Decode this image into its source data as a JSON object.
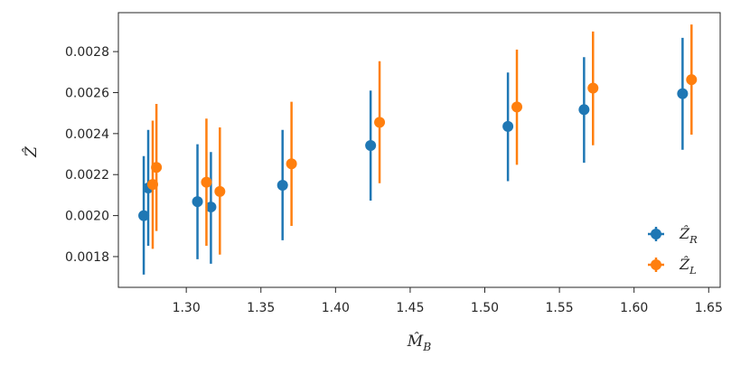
{
  "chart_data": {
    "type": "scatter",
    "title": "",
    "xlabel": "M̂_B",
    "ylabel": "Ẑ",
    "xlim": [
      1.2545,
      1.6577
    ],
    "ylim": [
      0.00165,
      0.00299
    ],
    "xticks": [
      1.3,
      1.35,
      1.4,
      1.45,
      1.5,
      1.55,
      1.6,
      1.65
    ],
    "xtick_labels": [
      "1.30",
      "1.35",
      "1.40",
      "1.45",
      "1.50",
      "1.55",
      "1.60",
      "1.65"
    ],
    "yticks": [
      0.0018,
      0.002,
      0.0022,
      0.0024,
      0.0026,
      0.0028
    ],
    "ytick_labels": [
      "0.0018",
      "0.0020",
      "0.0022",
      "0.0024",
      "0.0026",
      "0.0028"
    ],
    "grid": false,
    "legend_position": "lower-right",
    "series": [
      {
        "name": "Ẑ_R",
        "color": "#1f77b4",
        "points": [
          {
            "x": 1.2715,
            "y": 0.002,
            "ylow": 0.001712,
            "yhigh": 0.00229
          },
          {
            "x": 1.2745,
            "y": 0.002135,
            "ylow": 0.001853,
            "yhigh": 0.002418
          },
          {
            "x": 1.3075,
            "y": 0.002068,
            "ylow": 0.001787,
            "yhigh": 0.002348
          },
          {
            "x": 1.3165,
            "y": 0.002042,
            "ylow": 0.001765,
            "yhigh": 0.00231
          },
          {
            "x": 1.3645,
            "y": 0.002148,
            "ylow": 0.00188,
            "yhigh": 0.002418
          },
          {
            "x": 1.4235,
            "y": 0.002342,
            "ylow": 0.002073,
            "yhigh": 0.00261
          },
          {
            "x": 1.5155,
            "y": 0.002435,
            "ylow": 0.002168,
            "yhigh": 0.002698
          },
          {
            "x": 1.5665,
            "y": 0.002517,
            "ylow": 0.002258,
            "yhigh": 0.002773
          },
          {
            "x": 1.6325,
            "y": 0.002595,
            "ylow": 0.002321,
            "yhigh": 0.002867
          }
        ]
      },
      {
        "name": "Ẑ_L",
        "color": "#ff7f0e",
        "points": [
          {
            "x": 1.2775,
            "y": 0.002152,
            "ylow": 0.001838,
            "yhigh": 0.002463
          },
          {
            "x": 1.28,
            "y": 0.002235,
            "ylow": 0.001925,
            "yhigh": 0.002545
          },
          {
            "x": 1.3135,
            "y": 0.002163,
            "ylow": 0.001853,
            "yhigh": 0.002473
          },
          {
            "x": 1.3225,
            "y": 0.002118,
            "ylow": 0.00181,
            "yhigh": 0.00243
          },
          {
            "x": 1.3705,
            "y": 0.002253,
            "ylow": 0.00195,
            "yhigh": 0.002555
          },
          {
            "x": 1.4295,
            "y": 0.002455,
            "ylow": 0.002158,
            "yhigh": 0.002753
          },
          {
            "x": 1.5215,
            "y": 0.00253,
            "ylow": 0.002248,
            "yhigh": 0.00281
          },
          {
            "x": 1.5725,
            "y": 0.002622,
            "ylow": 0.002343,
            "yhigh": 0.002898
          },
          {
            "x": 1.6385,
            "y": 0.002663,
            "ylow": 0.002395,
            "yhigh": 0.002932
          }
        ]
      }
    ]
  }
}
